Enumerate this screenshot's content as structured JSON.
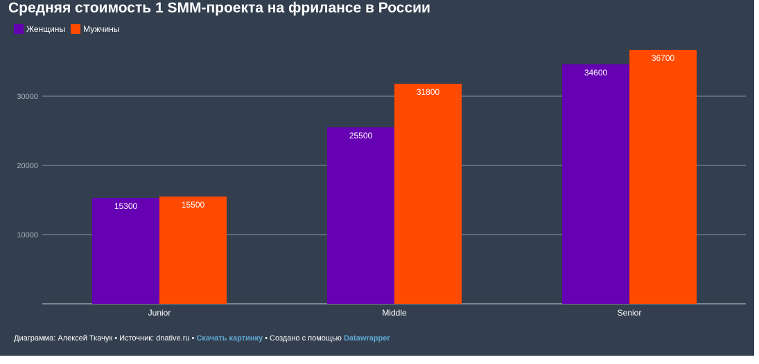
{
  "chart_data": {
    "type": "bar",
    "title": "Средняя стоимость 1 SMM-проекта на фрилансе в России",
    "categories": [
      "Junior",
      "Middle",
      "Senior"
    ],
    "series": [
      {
        "name": "Женщины",
        "color": "#6600b3",
        "values": [
          15300,
          25500,
          34600
        ]
      },
      {
        "name": "Мужчины",
        "color": "#ff4a00",
        "values": [
          15500,
          31800,
          36700
        ]
      }
    ],
    "yticks": [
      "10000",
      "20000",
      "30000"
    ],
    "ylim": [
      0,
      40000
    ],
    "grid": true,
    "legend": "top-left"
  },
  "footer": {
    "credit": "Диаграмма: Алексей Ткачук • Источник: dnative.ru • ",
    "download_link": "Скачать картинку",
    "created_with": " • Создано с помощью ",
    "tool_link": "Datawrapper"
  }
}
